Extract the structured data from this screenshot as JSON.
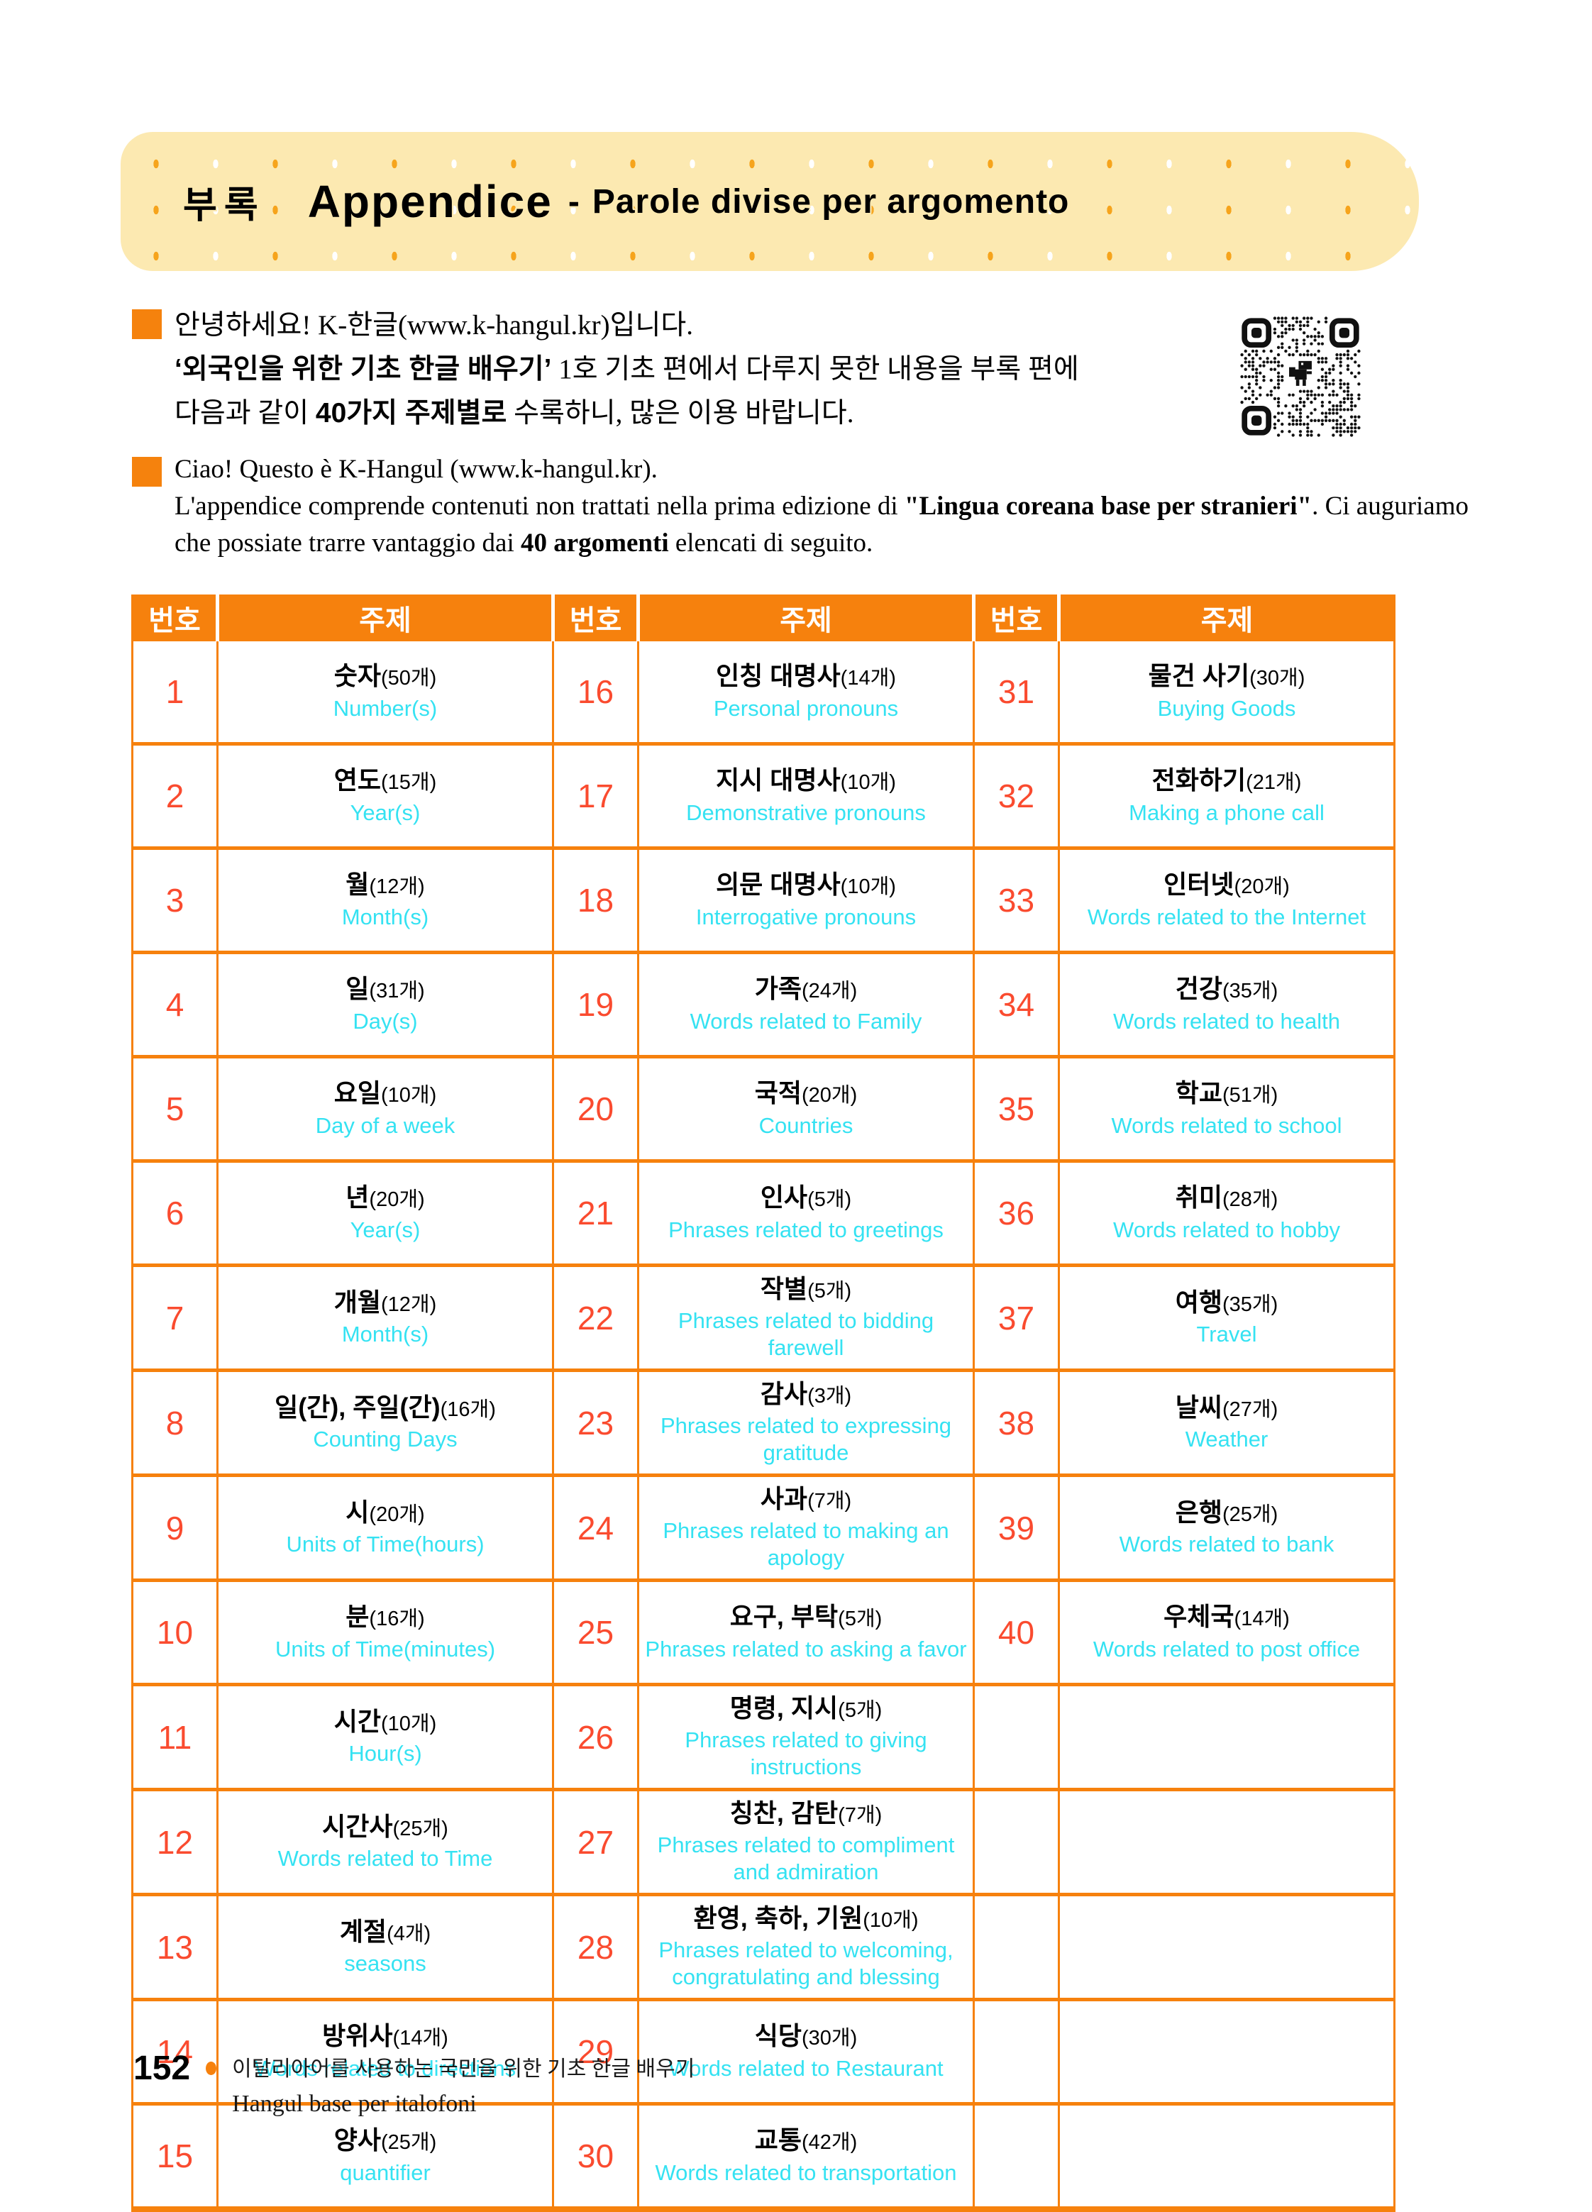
{
  "banner": {
    "korean_title": "부록",
    "main_title": "Appendice",
    "dash": "-",
    "subtitle": "Parole divise per argomento"
  },
  "intro_korean": {
    "line1": "안녕하세요! K-한글(www.k-hangul.kr)입니다.",
    "line2_bold": "‘외국인을 위한 기초 한글 배우기’",
    "line2_rest": " 1호 기초 편에서 다루지 못한 내용을 부록 편에",
    "line3_pre": "다음과 같이 ",
    "line3_bold": "40가지 주제별로",
    "line3_rest": " 수록하니, 많은 이용 바랍니다."
  },
  "intro_italian": {
    "line1": "Ciao! Questo è K-Hangul (www.k-hangul.kr).",
    "para_pre": "L'appendice comprende contenuti non trattati nella prima edizione di ",
    "para_bold1": "\"Lingua coreana base per stranieri\"",
    "para_mid": ". Ci auguriamo che possiate trarre vantaggio dai ",
    "para_bold2": "40 argomenti",
    "para_end": " elencati di seguito."
  },
  "colors": {
    "banner_bg": "#FCE9B1",
    "dot_orange": "#F6A41C",
    "table_orange": "#F6810D",
    "number_red": "#FA4B2F",
    "english_cyan": "#35E2F2"
  },
  "table": {
    "number_header": "번호",
    "topic_header": "주제",
    "rows": [
      {
        "cells": [
          {
            "no": "1",
            "kr": "숫자",
            "count": "(50개)",
            "en": "Number(s)"
          },
          {
            "no": "16",
            "kr": "인칭 대명사",
            "count": "(14개)",
            "en": "Personal pronouns"
          },
          {
            "no": "31",
            "kr": "물건 사기",
            "count": "(30개)",
            "en": "Buying Goods"
          }
        ]
      },
      {
        "cells": [
          {
            "no": "2",
            "kr": "연도",
            "count": "(15개)",
            "en": "Year(s)"
          },
          {
            "no": "17",
            "kr": "지시 대명사",
            "count": "(10개)",
            "en": "Demonstrative pronouns"
          },
          {
            "no": "32",
            "kr": "전화하기",
            "count": "(21개)",
            "en": "Making a phone call"
          }
        ]
      },
      {
        "cells": [
          {
            "no": "3",
            "kr": "월",
            "count": "(12개)",
            "en": "Month(s)"
          },
          {
            "no": "18",
            "kr": "의문 대명사",
            "count": "(10개)",
            "en": "Interrogative pronouns"
          },
          {
            "no": "33",
            "kr": "인터넷",
            "count": "(20개)",
            "en": "Words related to the Internet"
          }
        ]
      },
      {
        "cells": [
          {
            "no": "4",
            "kr": "일",
            "count": "(31개)",
            "en": "Day(s)"
          },
          {
            "no": "19",
            "kr": "가족",
            "count": "(24개)",
            "en": "Words related to Family"
          },
          {
            "no": "34",
            "kr": "건강",
            "count": "(35개)",
            "en": "Words related to health"
          }
        ]
      },
      {
        "cells": [
          {
            "no": "5",
            "kr": "요일",
            "count": "(10개)",
            "en": "Day of a week"
          },
          {
            "no": "20",
            "kr": "국적",
            "count": "(20개)",
            "en": "Countries"
          },
          {
            "no": "35",
            "kr": "학교",
            "count": "(51개)",
            "en": "Words related to school"
          }
        ]
      },
      {
        "cells": [
          {
            "no": "6",
            "kr": "년",
            "count": "(20개)",
            "en": "Year(s)"
          },
          {
            "no": "21",
            "kr": "인사",
            "count": "(5개)",
            "en": "Phrases related to greetings"
          },
          {
            "no": "36",
            "kr": "취미",
            "count": "(28개)",
            "en": "Words related to hobby"
          }
        ]
      },
      {
        "cells": [
          {
            "no": "7",
            "kr": "개월",
            "count": "(12개)",
            "en": "Month(s)"
          },
          {
            "no": "22",
            "kr": "작별",
            "count": "(5개)",
            "en": "Phrases related to bidding farewell"
          },
          {
            "no": "37",
            "kr": "여행",
            "count": "(35개)",
            "en": "Travel"
          }
        ]
      },
      {
        "cells": [
          {
            "no": "8",
            "kr": "일(간), 주일(간)",
            "count": "(16개)",
            "en": "Counting Days"
          },
          {
            "no": "23",
            "kr": "감사",
            "count": "(3개)",
            "en": "Phrases related to expressing gratitude"
          },
          {
            "no": "38",
            "kr": "날씨",
            "count": "(27개)",
            "en": "Weather"
          }
        ]
      },
      {
        "cells": [
          {
            "no": "9",
            "kr": "시",
            "count": "(20개)",
            "en": "Units of Time(hours)"
          },
          {
            "no": "24",
            "kr": "사과",
            "count": "(7개)",
            "en": "Phrases related to making an apology"
          },
          {
            "no": "39",
            "kr": "은행",
            "count": "(25개)",
            "en": "Words related to bank"
          }
        ]
      },
      {
        "cells": [
          {
            "no": "10",
            "kr": "분",
            "count": "(16개)",
            "en": "Units of Time(minutes)"
          },
          {
            "no": "25",
            "kr": "요구, 부탁",
            "count": "(5개)",
            "en": "Phrases related to asking a favor"
          },
          {
            "no": "40",
            "kr": "우체국",
            "count": "(14개)",
            "en": "Words related to post office"
          }
        ]
      },
      {
        "cells": [
          {
            "no": "11",
            "kr": "시간",
            "count": "(10개)",
            "en": "Hour(s)"
          },
          {
            "no": "26",
            "kr": "명령, 지시",
            "count": "(5개)",
            "en": "Phrases related to giving instructions"
          },
          null
        ]
      },
      {
        "cells": [
          {
            "no": "12",
            "kr": "시간사",
            "count": "(25개)",
            "en": "Words related to Time"
          },
          {
            "no": "27",
            "kr": "칭찬, 감탄",
            "count": "(7개)",
            "en": "Phrases related to compliment and admiration"
          },
          null
        ]
      },
      {
        "cells": [
          {
            "no": "13",
            "kr": "계절",
            "count": "(4개)",
            "en": "seasons"
          },
          {
            "no": "28",
            "kr": "환영, 축하, 기원",
            "count": "(10개)",
            "en": "Phrases related to welcoming, congratulating and blessing"
          },
          null
        ]
      },
      {
        "cells": [
          {
            "no": "14",
            "kr": "방위사",
            "count": "(14개)",
            "en": "Words related to directions"
          },
          {
            "no": "29",
            "kr": "식당",
            "count": "(30개)",
            "en": "Words related to Restaurant"
          },
          null
        ]
      },
      {
        "cells": [
          {
            "no": "15",
            "kr": "양사",
            "count": "(25개)",
            "en": "quantifier"
          },
          {
            "no": "30",
            "kr": "교통",
            "count": "(42개)",
            "en": "Words related to transportation"
          },
          null
        ]
      }
    ]
  },
  "footer": {
    "page_number": "152",
    "korean": "이탈리아어를 사용하는 국민을 위한 기초 한글 배우기",
    "italian": "Hangul base per italofoni"
  }
}
